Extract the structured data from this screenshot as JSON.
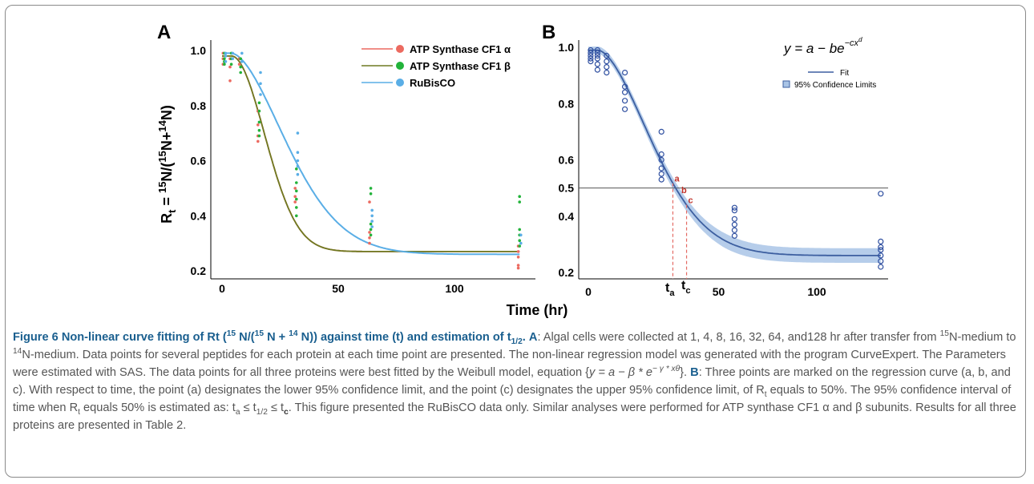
{
  "figure": {
    "panel_a_label": "A",
    "panel_b_label": "B",
    "x_axis_label": "Time (hr)",
    "equation_text": "y = a − be",
    "equation_exp": "−cx",
    "equation_exp_d": "d",
    "point_labels": [
      "a",
      "b",
      "c"
    ],
    "ta_label": "t",
    "ta_sub": "a",
    "tc_label": "t",
    "tc_sub": "c",
    "y_ticks_a": [
      "1.0",
      "0.8",
      "0.6",
      "0.4",
      "0.2"
    ],
    "y_ticks_b": [
      "1.0",
      "0.8",
      "0.6",
      "0.5",
      "0.4",
      "0.2"
    ],
    "x_ticks": [
      "0",
      "50",
      "100"
    ]
  },
  "colors": {
    "alpha": "#ec6a60",
    "beta": "#22b33a",
    "beta_line": "#6e7a22",
    "rubisco": "#5aaee6",
    "fit": "#3d5fa0",
    "band": "#a9c4e6",
    "caption_accent": "#1a5f8f"
  },
  "chart_data": [
    {
      "type": "scatter",
      "panel": "A",
      "ylabel": "R_t = 15N/(15N+14N)",
      "xlabel": "Time (hr)",
      "xlim": [
        0,
        130
      ],
      "ylim": [
        0.2,
        1.0
      ],
      "legend_position": "top-right",
      "x": [
        1,
        4,
        8,
        16,
        32,
        64,
        128
      ],
      "series": [
        {
          "name": "ATP Synthase CF1 α",
          "color": "#ec6a60",
          "points": [
            [
              1,
              0.97
            ],
            [
              1,
              0.95
            ],
            [
              1,
              0.99
            ],
            [
              4,
              0.97
            ],
            [
              4,
              0.94
            ],
            [
              4,
              0.89
            ],
            [
              8,
              0.97
            ],
            [
              8,
              0.95
            ],
            [
              16,
              0.78
            ],
            [
              16,
              0.73
            ],
            [
              16,
              0.69
            ],
            [
              16,
              0.67
            ],
            [
              32,
              0.5
            ],
            [
              32,
              0.47
            ],
            [
              32,
              0.45
            ],
            [
              64,
              0.34
            ],
            [
              64,
              0.32
            ],
            [
              64,
              0.3
            ],
            [
              64,
              0.45
            ],
            [
              128,
              0.29
            ],
            [
              128,
              0.27
            ],
            [
              128,
              0.25
            ],
            [
              128,
              0.22
            ],
            [
              128,
              0.21
            ]
          ],
          "fit": {
            "a": 0.98,
            "b": 0.71,
            "c": 0.0025,
            "d": 2.0,
            "shift": 4
          }
        },
        {
          "name": "ATP Synthase CF1 β",
          "color": "#22b33a",
          "points": [
            [
              1,
              0.99
            ],
            [
              1,
              0.97
            ],
            [
              1,
              0.95
            ],
            [
              1,
              0.96
            ],
            [
              4,
              0.99
            ],
            [
              4,
              0.97
            ],
            [
              4,
              0.95
            ],
            [
              8,
              0.97
            ],
            [
              8,
              0.94
            ],
            [
              8,
              0.92
            ],
            [
              16,
              0.81
            ],
            [
              16,
              0.78
            ],
            [
              16,
              0.74
            ],
            [
              16,
              0.71
            ],
            [
              16,
              0.69
            ],
            [
              32,
              0.57
            ],
            [
              32,
              0.52
            ],
            [
              32,
              0.49
            ],
            [
              32,
              0.46
            ],
            [
              32,
              0.43
            ],
            [
              32,
              0.4
            ],
            [
              64,
              0.5
            ],
            [
              64,
              0.48
            ],
            [
              64,
              0.37
            ],
            [
              64,
              0.35
            ],
            [
              64,
              0.33
            ],
            [
              128,
              0.47
            ],
            [
              128,
              0.45
            ],
            [
              128,
              0.35
            ],
            [
              128,
              0.33
            ],
            [
              128,
              0.31
            ],
            [
              128,
              0.29
            ]
          ],
          "fit": {
            "a": 0.98,
            "b": 0.71,
            "c": 0.0025,
            "d": 2.0,
            "shift": 4
          }
        },
        {
          "name": "RuBisCO",
          "color": "#5aaee6",
          "points": [
            [
              1,
              0.99
            ],
            [
              1,
              0.98
            ],
            [
              1,
              0.96
            ],
            [
              4,
              0.99
            ],
            [
              4,
              0.97
            ],
            [
              8,
              0.99
            ],
            [
              8,
              0.96
            ],
            [
              16,
              0.92
            ],
            [
              16,
              0.88
            ],
            [
              16,
              0.84
            ],
            [
              32,
              0.7
            ],
            [
              32,
              0.63
            ],
            [
              32,
              0.6
            ],
            [
              32,
              0.58
            ],
            [
              32,
              0.55
            ],
            [
              64,
              0.42
            ],
            [
              64,
              0.4
            ],
            [
              64,
              0.38
            ],
            [
              64,
              0.36
            ],
            [
              128,
              0.33
            ],
            [
              128,
              0.3
            ]
          ],
          "fit": {
            "a": 0.99,
            "b": 0.73,
            "c": 0.0023,
            "d": 1.75,
            "shift": 4
          }
        }
      ]
    },
    {
      "type": "scatter",
      "panel": "B",
      "xlim": [
        0,
        130
      ],
      "ylim": [
        0.2,
        1.0
      ],
      "reference_line_y": 0.5,
      "legend_position": "top-right",
      "legend": [
        "Fit",
        "95% Confidence Limits"
      ],
      "points": [
        [
          1,
          0.99
        ],
        [
          1,
          0.98
        ],
        [
          1,
          0.97
        ],
        [
          1,
          0.96
        ],
        [
          1,
          0.95
        ],
        [
          4,
          0.99
        ],
        [
          4,
          0.98
        ],
        [
          4,
          0.97
        ],
        [
          4,
          0.96
        ],
        [
          4,
          0.94
        ],
        [
          4,
          0.92
        ],
        [
          8,
          0.97
        ],
        [
          8,
          0.95
        ],
        [
          8,
          0.93
        ],
        [
          8,
          0.91
        ],
        [
          16,
          0.91
        ],
        [
          16,
          0.86
        ],
        [
          16,
          0.84
        ],
        [
          16,
          0.81
        ],
        [
          16,
          0.78
        ],
        [
          32,
          0.7
        ],
        [
          32,
          0.62
        ],
        [
          32,
          0.6
        ],
        [
          32,
          0.57
        ],
        [
          32,
          0.55
        ],
        [
          32,
          0.53
        ],
        [
          64,
          0.43
        ],
        [
          64,
          0.42
        ],
        [
          64,
          0.39
        ],
        [
          64,
          0.37
        ],
        [
          64,
          0.35
        ],
        [
          64,
          0.33
        ],
        [
          128,
          0.48
        ],
        [
          128,
          0.31
        ],
        [
          128,
          0.29
        ],
        [
          128,
          0.28
        ],
        [
          128,
          0.26
        ],
        [
          128,
          0.24
        ],
        [
          128,
          0.22
        ]
      ],
      "fit": {
        "a": 0.99,
        "b": 0.73,
        "c": 0.0023,
        "d": 1.75,
        "shift": 4
      },
      "marked_points": [
        {
          "label": "a",
          "x": 37
        },
        {
          "label": "b",
          "x": 40
        },
        {
          "label": "c",
          "x": 43
        }
      ]
    }
  ],
  "caption": {
    "lead": "Figure 6 Non-linear curve fitting of Rt (",
    "lead_15": "15",
    "lead_n1": " N/(",
    "lead_15b": "15",
    "lead_n2": " N + ",
    "lead_14": "14",
    "lead_n3": " N)) against time (t) and estimation of t",
    "lead_half": "1/2",
    "lead_end": ".",
    "a_label": "A",
    "p1": ": Algal cells were collected at 1, 4, 8, 16, 32, 64, and128 hr after transfer from ",
    "sup15": "15",
    "p1b": "N-medium to ",
    "sup14": "14",
    "p1c": "N-medium. Data points for several peptides for each protein at each time point are presented. The non-linear regression model was generated with the program CurveExpert. The Parameters were estimated with SAS. The data points for all three proteins were best fitted by the Weibull model, equation {",
    "eq": "y = a − β * e",
    "eq_exp": "− γ * xθ",
    "p1d": "}. ",
    "b_label": "B",
    "p2": ": Three points are marked on the regression curve (a, b, and c). With respect to time, the point (a) designates the lower 95% confidence limit, and the point (c) designates the upper 95% confidence limit, of R",
    "p2_sub": "t",
    "p2b": " equals to 50%. The 95% confidence interval of time when R",
    "p2b_sub": "t",
    "p2c": " equals 50% is estimated as: t",
    "p2c_sub": "a",
    "p2d": " ≤ t",
    "p2d_sub": "1/2",
    "p2e": " ≤ t",
    "p2e_sub": "c",
    "p2f": ". This figure presented the RuBisCO data only. Similar analyses were performed for ATP synthase CF1 α and β subunits. Results for all three proteins are presented in Table 2."
  }
}
